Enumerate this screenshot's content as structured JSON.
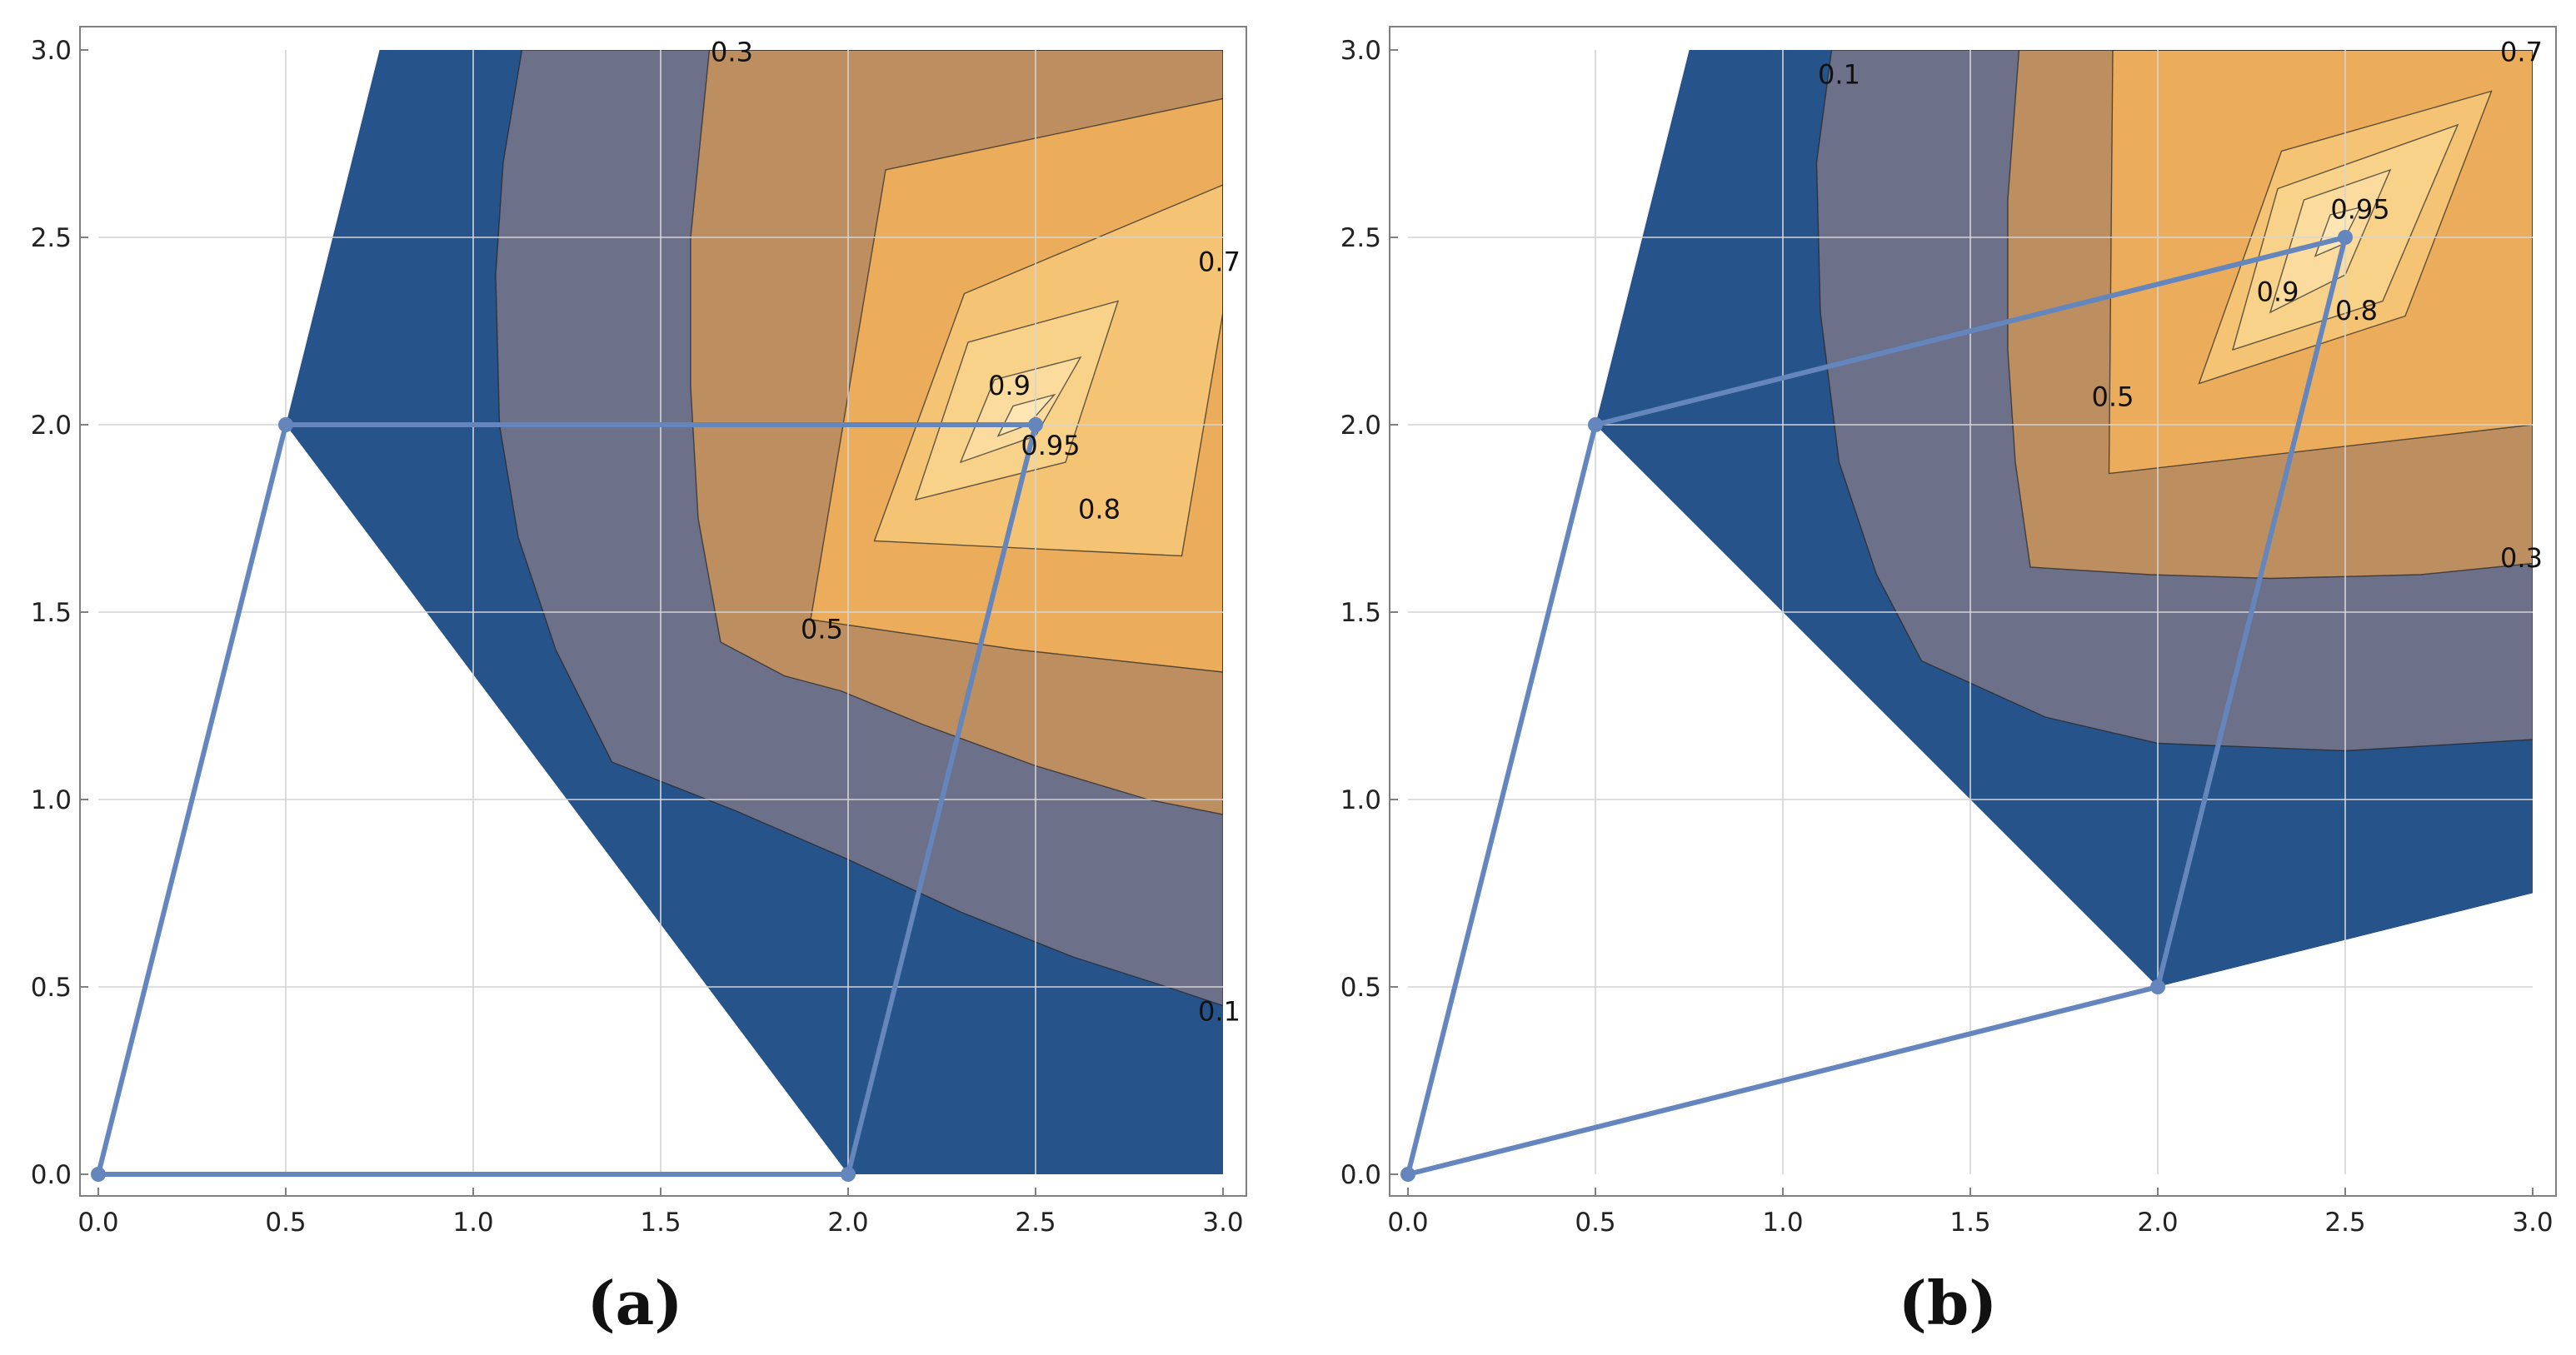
{
  "colors": {
    "levels": [
      "#ffffff",
      "#26548a",
      "#6d7089",
      "#bd8f60",
      "#ebad5b",
      "#f5c374",
      "#f9d28a",
      "#fbdc9e",
      "#fde6b4"
    ],
    "path": "#6486bd",
    "grid": "#d4d4d4",
    "frame": "#808080",
    "contour_line": "#222222"
  },
  "chart_data": [
    {
      "type": "contour",
      "caption": "(a)",
      "title": "",
      "xlabel": "",
      "ylabel": "",
      "xlim": [
        0,
        3
      ],
      "ylim": [
        0,
        3
      ],
      "x_ticks": [
        "0.0",
        "0.5",
        "1.0",
        "1.5",
        "2.0",
        "2.5",
        "3.0"
      ],
      "y_ticks": [
        "0.0",
        "0.5",
        "1.0",
        "1.5",
        "2.0",
        "2.5",
        "3.0"
      ],
      "grid": true,
      "contour_levels": [
        0.1,
        0.3,
        0.5,
        0.7,
        0.8,
        0.9,
        0.95
      ],
      "peak": [
        2.5,
        2.0
      ],
      "valid_region": [
        [
          0.75,
          3.0
        ],
        [
          3.0,
          3.0
        ],
        [
          3.0,
          0.0
        ],
        [
          2.0,
          0.0
        ],
        [
          0.5,
          2.0
        ]
      ],
      "contour_regions": [
        [
          [
            1.13,
            3.0
          ],
          [
            3.0,
            3.0
          ],
          [
            3.0,
            0.45
          ],
          [
            2.85,
            0.5
          ],
          [
            2.6,
            0.58
          ],
          [
            2.3,
            0.7
          ],
          [
            2.0,
            0.84
          ],
          [
            1.7,
            0.97
          ],
          [
            1.37,
            1.1
          ],
          [
            1.22,
            1.4
          ],
          [
            1.12,
            1.7
          ],
          [
            1.07,
            2.0
          ],
          [
            1.06,
            2.4
          ],
          [
            1.08,
            2.7
          ],
          [
            1.13,
            3.0
          ]
        ],
        [
          [
            1.63,
            3.0
          ],
          [
            3.0,
            3.0
          ],
          [
            3.0,
            0.96
          ],
          [
            2.8,
            1.0
          ],
          [
            2.5,
            1.09
          ],
          [
            2.2,
            1.2
          ],
          [
            1.98,
            1.29
          ],
          [
            1.83,
            1.33
          ],
          [
            1.66,
            1.42
          ],
          [
            1.6,
            1.75
          ],
          [
            1.58,
            2.1
          ],
          [
            1.58,
            2.5
          ],
          [
            1.63,
            3.0
          ]
        ],
        [
          [
            1.9,
            1.48
          ],
          [
            2.1,
            2.68
          ],
          [
            3.0,
            2.87
          ],
          [
            3.0,
            1.34
          ],
          [
            2.45,
            1.4
          ]
        ],
        [
          [
            2.07,
            1.69
          ],
          [
            2.31,
            2.35
          ],
          [
            3.0,
            2.64
          ],
          [
            3.0,
            2.3
          ],
          [
            2.89,
            1.65
          ]
        ],
        [
          [
            2.18,
            1.8
          ],
          [
            2.32,
            2.22
          ],
          [
            2.72,
            2.33
          ],
          [
            2.58,
            1.9
          ]
        ],
        [
          [
            2.3,
            1.9
          ],
          [
            2.39,
            2.12
          ],
          [
            2.62,
            2.18
          ],
          [
            2.5,
            1.97
          ]
        ],
        [
          [
            2.4,
            1.97
          ],
          [
            2.44,
            2.05
          ],
          [
            2.55,
            2.08
          ],
          [
            2.48,
            2.0
          ]
        ]
      ],
      "contour_labels": [
        {
          "text": "0.3",
          "x": 1.69,
          "y": 2.99
        },
        {
          "text": "0.7",
          "x": 2.99,
          "y": 2.43
        },
        {
          "text": "0.9",
          "x": 2.43,
          "y": 2.1
        },
        {
          "text": "0.95",
          "x": 2.54,
          "y": 1.94
        },
        {
          "text": "0.8",
          "x": 2.67,
          "y": 1.77
        },
        {
          "text": "0.5",
          "x": 1.93,
          "y": 1.45
        },
        {
          "text": "0.1",
          "x": 2.99,
          "y": 0.43
        }
      ],
      "path": [
        [
          0.0,
          0.0
        ],
        [
          2.0,
          0.0
        ],
        [
          2.5,
          2.0
        ],
        [
          0.5,
          2.0
        ],
        [
          0.0,
          0.0
        ]
      ],
      "path_points": [
        [
          0.0,
          0.0
        ],
        [
          2.0,
          0.0
        ],
        [
          2.5,
          2.0
        ],
        [
          0.5,
          2.0
        ]
      ]
    },
    {
      "type": "contour",
      "caption": "(b)",
      "title": "",
      "xlabel": "",
      "ylabel": "",
      "xlim": [
        0,
        3
      ],
      "ylim": [
        0,
        3
      ],
      "x_ticks": [
        "0.0",
        "0.5",
        "1.0",
        "1.5",
        "2.0",
        "2.5",
        "3.0"
      ],
      "y_ticks": [
        "0.0",
        "0.5",
        "1.0",
        "1.5",
        "2.0",
        "2.5",
        "3.0"
      ],
      "grid": true,
      "contour_levels": [
        0.1,
        0.3,
        0.5,
        0.7,
        0.8,
        0.9,
        0.95
      ],
      "peak": [
        2.5,
        2.5
      ],
      "valid_region": [
        [
          0.75,
          3.0
        ],
        [
          3.0,
          3.0
        ],
        [
          3.0,
          0.75
        ],
        [
          2.0,
          0.5
        ],
        [
          0.5,
          2.0
        ]
      ],
      "contour_regions": [
        [
          [
            1.13,
            3.0
          ],
          [
            3.0,
            3.0
          ],
          [
            3.0,
            1.16
          ],
          [
            2.5,
            1.13
          ],
          [
            2.0,
            1.15
          ],
          [
            1.7,
            1.22
          ],
          [
            1.37,
            1.37
          ],
          [
            1.25,
            1.6
          ],
          [
            1.15,
            1.9
          ],
          [
            1.1,
            2.3
          ],
          [
            1.09,
            2.7
          ],
          [
            1.13,
            3.0
          ]
        ],
        [
          [
            1.63,
            3.0
          ],
          [
            3.0,
            3.0
          ],
          [
            3.0,
            1.63
          ],
          [
            2.7,
            1.6
          ],
          [
            2.3,
            1.59
          ],
          [
            1.98,
            1.6
          ],
          [
            1.66,
            1.62
          ],
          [
            1.62,
            1.9
          ],
          [
            1.6,
            2.2
          ],
          [
            1.6,
            2.6
          ],
          [
            1.63,
            3.0
          ]
        ],
        [
          [
            1.87,
            1.87
          ],
          [
            1.88,
            3.0
          ],
          [
            3.0,
            3.0
          ],
          [
            3.0,
            2.0
          ]
        ],
        [
          [
            2.11,
            2.11
          ],
          [
            2.33,
            2.73
          ],
          [
            2.89,
            2.89
          ],
          [
            2.66,
            2.29
          ]
        ],
        [
          [
            2.2,
            2.2
          ],
          [
            2.32,
            2.63
          ],
          [
            2.8,
            2.8
          ],
          [
            2.6,
            2.33
          ]
        ],
        [
          [
            2.3,
            2.3
          ],
          [
            2.39,
            2.6
          ],
          [
            2.62,
            2.68
          ],
          [
            2.5,
            2.4
          ]
        ],
        [
          [
            2.42,
            2.45
          ],
          [
            2.46,
            2.56
          ],
          [
            2.54,
            2.58
          ],
          [
            2.49,
            2.48
          ]
        ]
      ],
      "contour_labels": [
        {
          "text": "0.1",
          "x": 1.15,
          "y": 2.93
        },
        {
          "text": "0.7",
          "x": 2.97,
          "y": 2.99
        },
        {
          "text": "0.95",
          "x": 2.54,
          "y": 2.57
        },
        {
          "text": "0.9",
          "x": 2.32,
          "y": 2.35
        },
        {
          "text": "0.8",
          "x": 2.53,
          "y": 2.3
        },
        {
          "text": "0.5",
          "x": 1.88,
          "y": 2.07
        },
        {
          "text": "0.3",
          "x": 2.97,
          "y": 1.64
        }
      ],
      "path": [
        [
          0.0,
          0.0
        ],
        [
          2.0,
          0.5
        ],
        [
          2.5,
          2.5
        ],
        [
          0.5,
          2.0
        ],
        [
          0.0,
          0.0
        ]
      ],
      "path_points": [
        [
          0.0,
          0.0
        ],
        [
          2.0,
          0.5
        ],
        [
          2.5,
          2.5
        ],
        [
          0.5,
          2.0
        ]
      ]
    }
  ]
}
